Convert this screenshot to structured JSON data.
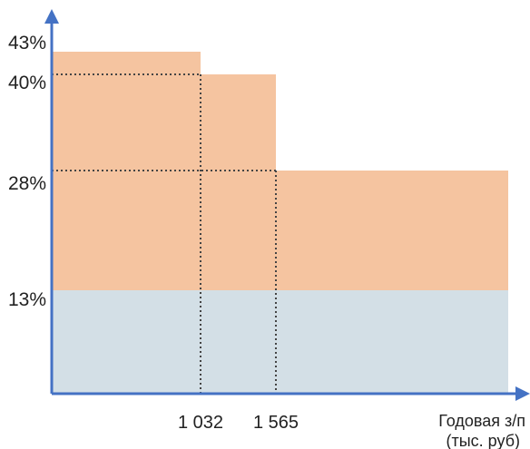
{
  "chart_data": {
    "type": "area",
    "xlabel": [
      "Годовая з/п",
      "(тыс. руб)"
    ],
    "y_tick_labels": [
      "13%",
      "28%",
      "40%",
      "43%"
    ],
    "x_tick_labels": [
      "1 032",
      "1 565"
    ],
    "steps": [
      {
        "x_from": 0,
        "x_to": 1032,
        "rate": 43
      },
      {
        "x_from": 1032,
        "x_to": 1565,
        "rate": 40
      },
      {
        "x_from": 1565,
        "x_to": null,
        "rate": 28
      }
    ],
    "base_rate": 13,
    "guides": [
      {
        "x": 1032,
        "y": 40
      },
      {
        "x": 1565,
        "y": 28
      }
    ],
    "colors": {
      "axis": "#4472c4",
      "upper_fill": "#f5c4a0",
      "base_fill": "#d3dfe6",
      "guide": "#444444"
    },
    "grid": false
  }
}
